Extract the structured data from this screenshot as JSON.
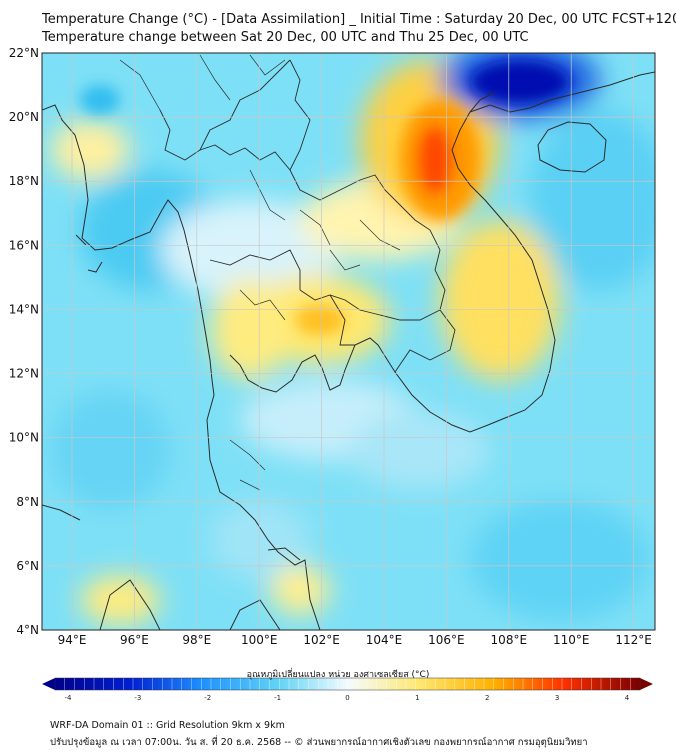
{
  "header": {
    "title_line1": "Temperature Change (°C) - [Data Assimilation] _ Initial Time : Saturday 20 Dec, 00 UTC FCST+120",
    "title_line2": "Temperature change between Sat 20 Dec, 00 UTC and Thu 25 Dec, 00 UTC"
  },
  "map": {
    "lat_labels": [
      "22°N",
      "20°N",
      "18°N",
      "16°N",
      "14°N",
      "12°N",
      "10°N",
      "8°N",
      "6°N",
      "4°N"
    ],
    "lon_labels": [
      "94°E",
      "96°E",
      "98°E",
      "100°E",
      "102°E",
      "104°E",
      "106°E",
      "108°E",
      "110°E",
      "112°E"
    ]
  },
  "colorbar": {
    "title": "อุณหภูมิเปลี่ยนแปลง หน่วย องศาเซลเซียส (°C)",
    "ticks": [
      "-4",
      "-3",
      "-2",
      "-1",
      "0",
      "1",
      "2",
      "3",
      "4"
    ],
    "colors": {
      "min": "#00008b",
      "cold": "#1e90ff",
      "cool": "#5fd3f5",
      "neutral": "#eef9ff",
      "warm": "#ffe870",
      "hot": "#ff6a00",
      "max": "#7a0000"
    }
  },
  "footer": {
    "line1": "WRF-DA Domain 01 :: Grid Resolution 9km x 9km",
    "line2": "ปรับปรุงข้อมูล ณ เวลา 07:00น. วัน ส. ที่ 20 ธ.ค. 2568 -- © ส่วนพยากรณ์อากาศเชิงตัวเลข กองพยากรณ์อากาศ กรมอุตุนิยมวิทยา"
  }
}
